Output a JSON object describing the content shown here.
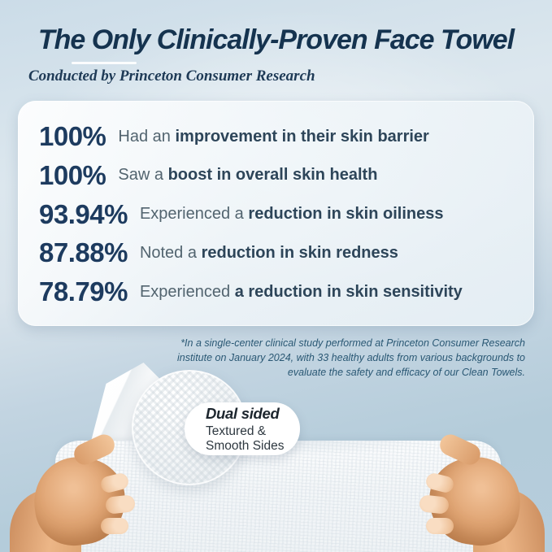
{
  "header": {
    "title": "The Only Clinically-Proven Face Towel",
    "subtitle": "Conducted by Princeton Consumer Research"
  },
  "stats": [
    {
      "value": "100%",
      "prefix": "Had an",
      "bold": "improvement in their skin barrier"
    },
    {
      "value": "100%",
      "prefix": "Saw a",
      "bold": "boost in overall skin health"
    },
    {
      "value": "93.94%",
      "prefix": "Experienced a",
      "bold": "reduction in skin oiliness"
    },
    {
      "value": "87.88%",
      "prefix": "Noted a",
      "bold": "reduction in skin redness"
    },
    {
      "value": "78.79%",
      "prefix": "Experienced",
      "bold": "a reduction in skin sensitivity"
    }
  ],
  "disclaimer": {
    "lines": [
      "*In a single-center clinical study performed at Princeton Consumer Research",
      "institute on January 2024, with 33 healthy adults from various backgrounds to",
      "evaluate the safety and efficacy of our Clean Towels."
    ]
  },
  "callout": {
    "title": "Dual sided",
    "line1": "Textured &",
    "line2": "Smooth Sides"
  },
  "colors": {
    "title_navy": "#15334f",
    "stat_value_navy": "#1d3b5f",
    "stat_text_grey": "#52646f",
    "disclaimer_blue": "#2a5874",
    "background_top": "#cfdfe9",
    "background_bottom": "#b3cbda",
    "card_white": "#f5f9fb"
  }
}
